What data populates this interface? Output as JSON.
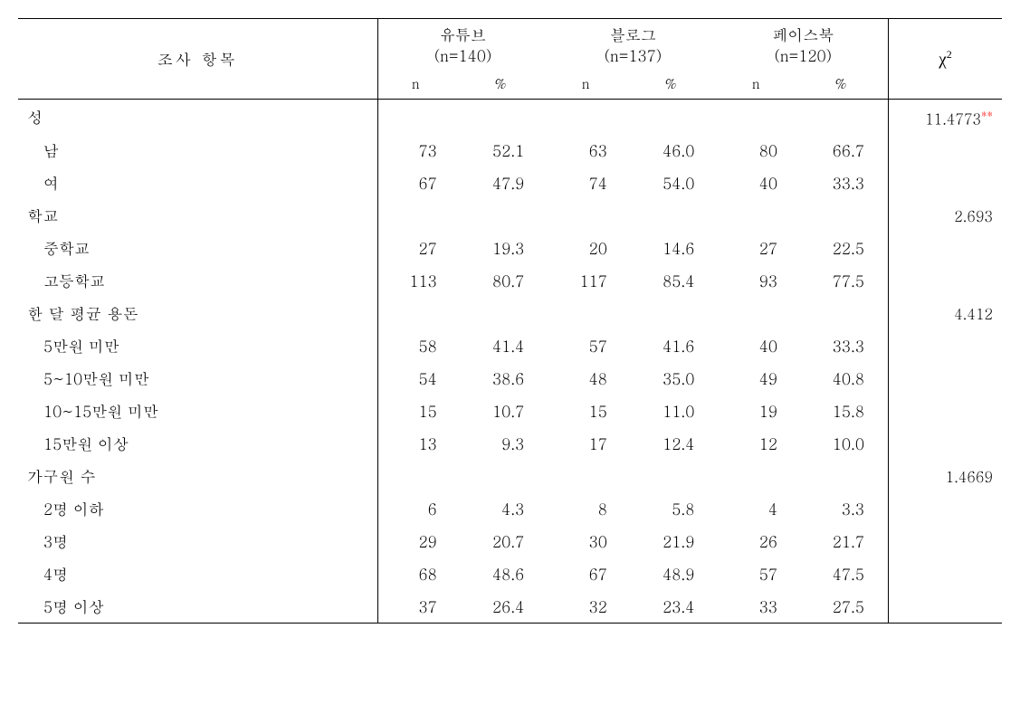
{
  "background_color": "#ffffff",
  "text_color": "#000000",
  "sig_color": "#ff0000",
  "border_color": "#000000",
  "font_body": "Batang, Times New Roman, serif",
  "header": {
    "row_label": "조사 항목",
    "chi_label": "χ²",
    "n_label": "n",
    "pct_label": "%",
    "groups": [
      {
        "name": "유튜브",
        "n_info": "(n=140)"
      },
      {
        "name": "블로그",
        "n_info": "(n=137)"
      },
      {
        "name": "페이스북",
        "n_info": "(n=120)"
      }
    ]
  },
  "sections": [
    {
      "label": "성",
      "chi": "11.4773",
      "sig": "**",
      "rows": [
        {
          "label": "남",
          "v": [
            {
              "n": "73",
              "p": "52.1"
            },
            {
              "n": "63",
              "p": "46.0"
            },
            {
              "n": "80",
              "p": "66.7"
            }
          ]
        },
        {
          "label": "여",
          "v": [
            {
              "n": "67",
              "p": "47.9"
            },
            {
              "n": "74",
              "p": "54.0"
            },
            {
              "n": "40",
              "p": "33.3"
            }
          ]
        }
      ]
    },
    {
      "label": "학교",
      "chi": "2.693",
      "sig": "",
      "rows": [
        {
          "label": "중학교",
          "v": [
            {
              "n": "27",
              "p": "19.3"
            },
            {
              "n": "20",
              "p": "14.6"
            },
            {
              "n": "27",
              "p": "22.5"
            }
          ]
        },
        {
          "label": "고등학교",
          "v": [
            {
              "n": "113",
              "p": "80.7"
            },
            {
              "n": "117",
              "p": "85.4"
            },
            {
              "n": "93",
              "p": "77.5"
            }
          ]
        }
      ]
    },
    {
      "label": "한 달 평균 용돈",
      "chi": "4.412",
      "sig": "",
      "rows": [
        {
          "label": "5만원 미만",
          "v": [
            {
              "n": "58",
              "p": "41.4"
            },
            {
              "n": "57",
              "p": "41.6"
            },
            {
              "n": "40",
              "p": "33.3"
            }
          ]
        },
        {
          "label": "5~10만원 미만",
          "v": [
            {
              "n": "54",
              "p": "38.6"
            },
            {
              "n": "48",
              "p": "35.0"
            },
            {
              "n": "49",
              "p": "40.8"
            }
          ]
        },
        {
          "label": "10~15만원 미만",
          "v": [
            {
              "n": "15",
              "p": "10.7"
            },
            {
              "n": "15",
              "p": "11.0"
            },
            {
              "n": "19",
              "p": "15.8"
            }
          ]
        },
        {
          "label": "15만원 이상",
          "v": [
            {
              "n": "13",
              "p": "9.3"
            },
            {
              "n": "17",
              "p": "12.4"
            },
            {
              "n": "12",
              "p": "10.0"
            }
          ]
        }
      ]
    },
    {
      "label": "가구원 수",
      "chi": "1.4669",
      "sig": "",
      "rows": [
        {
          "label": "2명 이하",
          "v": [
            {
              "n": "6",
              "p": "4.3"
            },
            {
              "n": "8",
              "p": "5.8"
            },
            {
              "n": "4",
              "p": "3.3"
            }
          ]
        },
        {
          "label": "3명",
          "v": [
            {
              "n": "29",
              "p": "20.7"
            },
            {
              "n": "30",
              "p": "21.9"
            },
            {
              "n": "26",
              "p": "21.7"
            }
          ]
        },
        {
          "label": "4명",
          "v": [
            {
              "n": "68",
              "p": "48.6"
            },
            {
              "n": "67",
              "p": "48.9"
            },
            {
              "n": "57",
              "p": "47.5"
            }
          ]
        },
        {
          "label": "5명 이상",
          "v": [
            {
              "n": "37",
              "p": "26.4"
            },
            {
              "n": "32",
              "p": "23.4"
            },
            {
              "n": "33",
              "p": "27.5"
            }
          ]
        }
      ]
    }
  ]
}
